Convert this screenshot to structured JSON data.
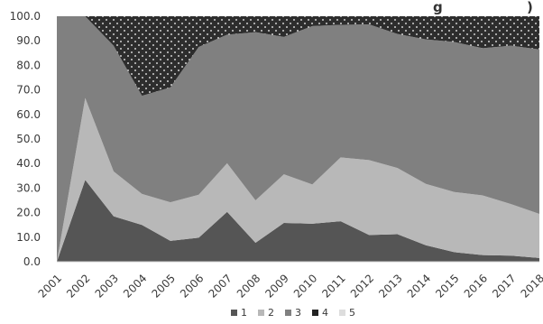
{
  "chart_data": {
    "type": "area",
    "stacked": true,
    "title": "g",
    "title_suffix": ")",
    "xlabel": "",
    "ylabel": "",
    "ylim": [
      0,
      100
    ],
    "yticks": [
      "0.0",
      "10.0",
      "20.0",
      "30.0",
      "40.0",
      "50.0",
      "60.0",
      "70.0",
      "80.0",
      "90.0",
      "100.0"
    ],
    "ytick_values": [
      0,
      10,
      20,
      30,
      40,
      50,
      60,
      70,
      80,
      90,
      100
    ],
    "grid": false,
    "legend_position": "bottom",
    "x": [
      "2001",
      "2002",
      "2003",
      "2004",
      "2005",
      "2006",
      "2007",
      "2008",
      "2009",
      "2010",
      "2011",
      "2012",
      "2013",
      "2014",
      "2015",
      "2016",
      "2017",
      "2018"
    ],
    "series": [
      {
        "name": "1",
        "color": "#555555",
        "values": [
          0.0,
          33.3,
          18.5,
          15.0,
          8.5,
          9.8,
          20.3,
          7.7,
          15.8,
          15.5,
          16.5,
          10.9,
          11.2,
          6.7,
          3.9,
          2.7,
          2.5,
          1.5
        ]
      },
      {
        "name": "2",
        "color": "#b8b8b8",
        "values": [
          0.0,
          33.4,
          18.3,
          12.6,
          15.7,
          17.5,
          19.8,
          17.3,
          19.8,
          16.0,
          26.0,
          30.5,
          27.0,
          25.0,
          24.5,
          24.3,
          21.0,
          18.0
        ]
      },
      {
        "name": "3",
        "color": "#808080",
        "values": [
          100.0,
          33.3,
          51.2,
          40.0,
          46.8,
          60.2,
          52.4,
          68.5,
          56.0,
          64.5,
          54.0,
          55.3,
          54.6,
          58.9,
          61.1,
          60.0,
          64.5,
          67.0
        ]
      },
      {
        "name": "4",
        "color": "#2d2d2d",
        "values": [
          0.0,
          0.0,
          12.0,
          32.4,
          29.0,
          12.5,
          7.5,
          6.5,
          8.4,
          4.0,
          3.5,
          3.3,
          7.2,
          9.4,
          10.5,
          13.0,
          12.0,
          13.5
        ]
      },
      {
        "name": "5",
        "color": "#dddddd",
        "values": [
          0,
          0,
          0,
          0,
          0,
          0,
          0,
          0,
          0,
          0,
          0,
          0,
          0,
          0,
          0,
          0,
          0,
          0
        ]
      }
    ]
  }
}
